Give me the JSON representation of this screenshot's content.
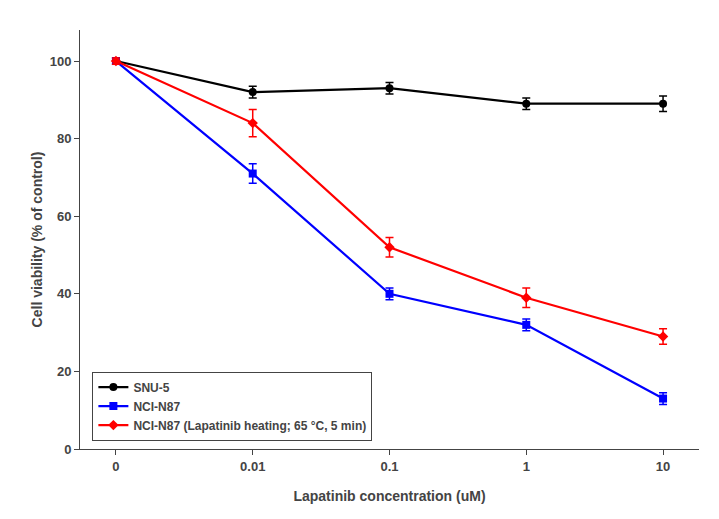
{
  "chart_data": {
    "type": "line",
    "xlabel": "Lapatinib concentration (uM)",
    "ylabel": "Cell viability (% of control)",
    "categories": [
      "0",
      "0.01",
      "0.1",
      "1",
      "10"
    ],
    "series": [
      {
        "name": "SNU-5",
        "color": "#000000",
        "marker": "circle",
        "values": [
          100,
          92,
          93,
          89,
          89
        ],
        "errors": [
          0.8,
          1.5,
          1.5,
          1.5,
          2.0
        ]
      },
      {
        "name": "NCI-N87",
        "color": "#0000FF",
        "marker": "square",
        "values": [
          100,
          71,
          40,
          32,
          13
        ],
        "errors": [
          0.8,
          2.5,
          1.5,
          1.5,
          1.5
        ]
      },
      {
        "name": "NCI-N87 (Lapatinib heating; 65 °C, 5 min)",
        "color": "#FF0000",
        "marker": "diamond",
        "values": [
          100,
          84,
          52,
          39,
          29
        ],
        "errors": [
          0.8,
          3.5,
          2.5,
          2.5,
          2.0
        ]
      }
    ],
    "ylim": [
      0,
      108
    ],
    "yticks": [
      0,
      20,
      40,
      60,
      80,
      100
    ],
    "grid": false,
    "legend": "lower left"
  }
}
